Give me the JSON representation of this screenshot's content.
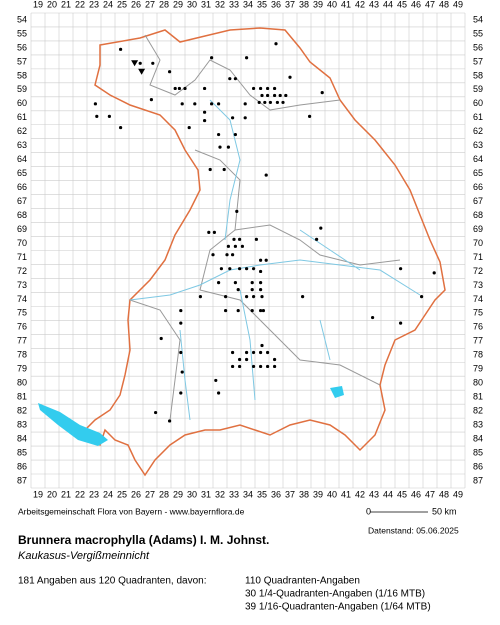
{
  "map": {
    "columns": [
      19,
      20,
      21,
      22,
      23,
      24,
      25,
      26,
      27,
      28,
      29,
      30,
      31,
      32,
      33,
      34,
      35,
      36,
      37,
      38,
      39,
      40,
      41,
      42,
      43,
      44,
      45,
      46,
      47,
      48,
      49
    ],
    "rows": [
      54,
      55,
      56,
      57,
      58,
      59,
      60,
      61,
      62,
      63,
      64,
      65,
      66,
      67,
      68,
      69,
      70,
      71,
      72,
      73,
      74,
      75,
      76,
      77,
      78,
      79,
      80,
      81,
      82,
      83,
      84,
      85,
      86,
      87
    ],
    "dots": [
      [
        24.9,
        56.1
      ],
      [
        26.3,
        57.1
      ],
      [
        27.2,
        57.1
      ],
      [
        28.4,
        57.7
      ],
      [
        31.4,
        56.7
      ],
      [
        33.9,
        56.7
      ],
      [
        36.0,
        55.7
      ],
      [
        32.7,
        58.2
      ],
      [
        33.1,
        58.2
      ],
      [
        37.0,
        58.1
      ],
      [
        27.1,
        59.7
      ],
      [
        28.8,
        58.9
      ],
      [
        29.1,
        58.9
      ],
      [
        29.5,
        58.9
      ],
      [
        30.9,
        58.9
      ],
      [
        34.4,
        58.9
      ],
      [
        34.9,
        58.9
      ],
      [
        35.4,
        58.9
      ],
      [
        35.9,
        58.9
      ],
      [
        35.0,
        59.4
      ],
      [
        35.4,
        59.4
      ],
      [
        35.9,
        59.4
      ],
      [
        36.3,
        59.4
      ],
      [
        36.7,
        59.4
      ],
      [
        34.8,
        59.9
      ],
      [
        35.2,
        59.9
      ],
      [
        35.6,
        59.9
      ],
      [
        36.1,
        59.9
      ],
      [
        36.5,
        59.9
      ],
      [
        23.1,
        60.0
      ],
      [
        23.2,
        60.9
      ],
      [
        24.1,
        60.9
      ],
      [
        24.9,
        61.7
      ],
      [
        29.3,
        60.0
      ],
      [
        30.2,
        60.0
      ],
      [
        31.4,
        60.0
      ],
      [
        31.9,
        60.0
      ],
      [
        30.9,
        60.6
      ],
      [
        30.9,
        61.2
      ],
      [
        32.9,
        61.0
      ],
      [
        33.8,
        60.0
      ],
      [
        33.8,
        61.0
      ],
      [
        29.8,
        61.7
      ],
      [
        31.9,
        62.2
      ],
      [
        33.1,
        62.2
      ],
      [
        31.3,
        64.7
      ],
      [
        32.3,
        64.7
      ],
      [
        35.3,
        65.1
      ],
      [
        39.3,
        59.2
      ],
      [
        38.4,
        60.9
      ],
      [
        32.0,
        63.1
      ],
      [
        32.6,
        63.1
      ],
      [
        33.2,
        67.7
      ],
      [
        31.2,
        69.2
      ],
      [
        31.6,
        69.2
      ],
      [
        33.0,
        69.7
      ],
      [
        33.4,
        69.7
      ],
      [
        34.6,
        69.7
      ],
      [
        32.6,
        70.2
      ],
      [
        33.1,
        70.2
      ],
      [
        33.6,
        70.2
      ],
      [
        31.5,
        70.8
      ],
      [
        32.5,
        70.8
      ],
      [
        32.9,
        70.8
      ],
      [
        34.9,
        71.2
      ],
      [
        35.3,
        71.2
      ],
      [
        32.1,
        71.8
      ],
      [
        32.7,
        71.8
      ],
      [
        33.4,
        71.8
      ],
      [
        33.9,
        71.8
      ],
      [
        34.4,
        71.8
      ],
      [
        34.9,
        72.0
      ],
      [
        31.9,
        72.8
      ],
      [
        33.1,
        72.8
      ],
      [
        34.3,
        72.8
      ],
      [
        34.9,
        72.8
      ],
      [
        33.3,
        73.3
      ],
      [
        34.3,
        73.3
      ],
      [
        34.9,
        73.3
      ],
      [
        32.4,
        73.8
      ],
      [
        33.9,
        73.8
      ],
      [
        34.4,
        73.8
      ],
      [
        35.0,
        73.8
      ],
      [
        30.6,
        73.8
      ],
      [
        29.2,
        74.8
      ],
      [
        32.4,
        74.8
      ],
      [
        33.3,
        74.8
      ],
      [
        34.3,
        74.8
      ],
      [
        34.9,
        74.8
      ],
      [
        35.1,
        74.8
      ],
      [
        37.9,
        73.8
      ],
      [
        39.2,
        68.9
      ],
      [
        38.9,
        69.7
      ],
      [
        44.9,
        71.8
      ],
      [
        47.3,
        72.1
      ],
      [
        46.4,
        73.8
      ],
      [
        29.2,
        75.7
      ],
      [
        27.8,
        76.8
      ],
      [
        29.2,
        77.8
      ],
      [
        32.9,
        77.8
      ],
      [
        33.9,
        77.8
      ],
      [
        34.4,
        77.8
      ],
      [
        34.9,
        77.8
      ],
      [
        35.4,
        77.8
      ],
      [
        33.4,
        78.3
      ],
      [
        35.9,
        78.3
      ],
      [
        32.9,
        78.8
      ],
      [
        33.4,
        78.8
      ],
      [
        34.4,
        78.8
      ],
      [
        34.9,
        78.8
      ],
      [
        35.4,
        78.8
      ],
      [
        35.9,
        78.8
      ],
      [
        33.9,
        78.3
      ],
      [
        29.3,
        79.2
      ],
      [
        31.7,
        79.8
      ],
      [
        31.9,
        80.7
      ],
      [
        29.2,
        80.7
      ],
      [
        28.4,
        82.7
      ],
      [
        27.4,
        82.1
      ],
      [
        35.0,
        77.3
      ],
      [
        42.9,
        75.3
      ],
      [
        44.9,
        75.7
      ]
    ],
    "triangles": [
      [
        25.9,
        57.1
      ],
      [
        26.4,
        57.7
      ]
    ],
    "scale_start": "0",
    "scale_end": "50 km"
  },
  "footer": {
    "credit": "Arbeitsgemeinschaft Flora von Bayern - www.bayernflora.de",
    "date": "Datenstand: 05.06.2025",
    "species": "Brunnera macrophylla (Adams) I. M. Johnst.",
    "common_name": "Kaukasus-Vergißmeinnicht",
    "summary": "181 Angaben aus 120 Quadranten, davon:",
    "counts": [
      "110 Quadranten-Angaben",
      "30 1/4-Quadranten-Angaben (1/16 MTB)",
      "39 1/16-Quadranten-Angaben (1/64 MTB)"
    ]
  }
}
